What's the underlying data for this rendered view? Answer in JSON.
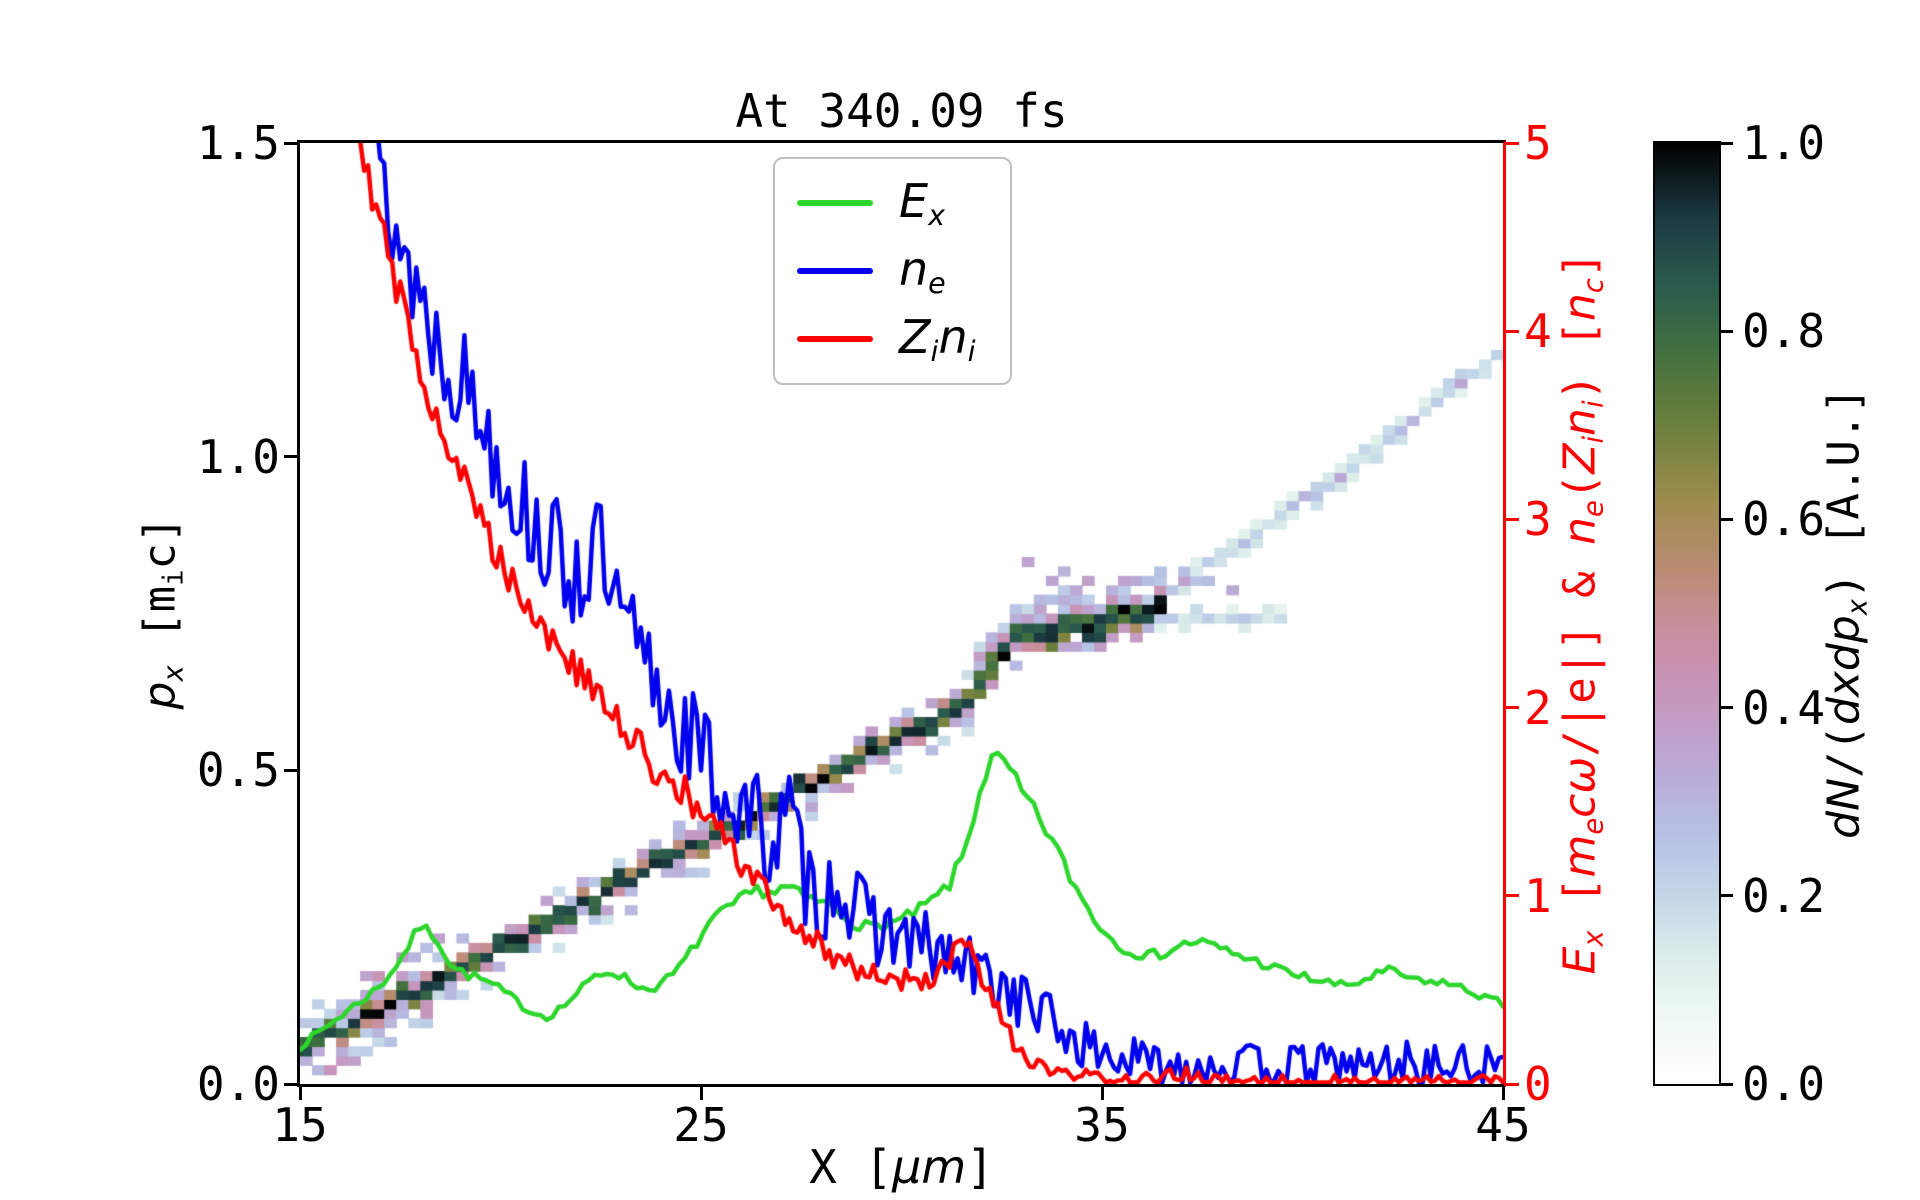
{
  "chart_data": {
    "type": "line+heatmap",
    "title": "At 340.09 fs",
    "xlabel_text": "X [μm]",
    "xlabel_parts": [
      [
        "t",
        "X ["
      ],
      [
        "i",
        "μm"
      ],
      [
        "t",
        "]"
      ]
    ],
    "ylabel_left_text": "p_x [m_ic]",
    "ylabel_left_parts": [
      [
        "i",
        "p"
      ],
      [
        "sub",
        "x"
      ],
      [
        "t",
        " [m"
      ],
      [
        "tsub",
        "i"
      ],
      [
        "t",
        "c]"
      ]
    ],
    "ylabel_right_text": "E_x [m_ecω/|e|] & n_e(Z_in_i) [n_c]",
    "ylabel_right_parts": [
      [
        "i",
        "E"
      ],
      [
        "sub",
        "x"
      ],
      [
        "t",
        " ["
      ],
      [
        "i",
        "m"
      ],
      [
        "sub",
        "e"
      ],
      [
        "i",
        "cω"
      ],
      [
        "t",
        "/|e|] & "
      ],
      [
        "i",
        "n"
      ],
      [
        "sub",
        "e"
      ],
      [
        "t",
        "("
      ],
      [
        "i",
        "Z"
      ],
      [
        "sub",
        "i"
      ],
      [
        "i",
        "n"
      ],
      [
        "sub",
        "i"
      ],
      [
        "t",
        ") ["
      ],
      [
        "i",
        "n"
      ],
      [
        "sub",
        "c"
      ],
      [
        "t",
        "]"
      ]
    ],
    "colorbar_label_text": "dN/(dxdp_x) [A.U.]",
    "colorbar_label_parts": [
      [
        "i",
        "dN"
      ],
      [
        "t",
        "/("
      ],
      [
        "i",
        "dxdp"
      ],
      [
        "sub",
        "x"
      ],
      [
        "t",
        ") [A.U.]"
      ]
    ],
    "xlim": [
      15,
      45
    ],
    "ylim_left": [
      0.0,
      1.5
    ],
    "ylim_right": [
      0,
      5
    ],
    "grid": false,
    "legend_position": "upper center-left inside plot",
    "x_ticks": {
      "values": [
        15,
        25,
        35,
        45
      ],
      "labels": [
        "15",
        "25",
        "35",
        "45"
      ]
    },
    "y_ticks_left": {
      "values": [
        0.0,
        0.5,
        1.0,
        1.5
      ],
      "labels": [
        "0.0",
        "0.5",
        "1.0",
        "1.5"
      ]
    },
    "y_ticks_right": {
      "values": [
        0,
        1,
        2,
        3,
        4,
        5
      ],
      "labels": [
        "0",
        "1",
        "2",
        "3",
        "4",
        "5"
      ]
    },
    "colors": {
      "axis": "#000000",
      "right_axis": "#ff0000",
      "legend_border": "#bfbfbf"
    },
    "colorbar": {
      "range": [
        0.0,
        1.0
      ],
      "ticks": {
        "values": [
          0.0,
          0.2,
          0.4,
          0.6,
          0.8,
          1.0
        ],
        "labels": [
          "0.0",
          "0.2",
          "0.4",
          "0.6",
          "0.8",
          "1.0"
        ]
      },
      "stops": [
        [
          0,
          "#ffffff"
        ],
        [
          0.06,
          "#f2faf5"
        ],
        [
          0.13,
          "#ddeeea"
        ],
        [
          0.2,
          "#c3d7e8"
        ],
        [
          0.27,
          "#b6bfe3"
        ],
        [
          0.34,
          "#bba8d4"
        ],
        [
          0.42,
          "#c795bb"
        ],
        [
          0.48,
          "#c98f9f"
        ],
        [
          0.55,
          "#b98c71"
        ],
        [
          0.62,
          "#9d8c4e"
        ],
        [
          0.7,
          "#6b803c"
        ],
        [
          0.78,
          "#40703f"
        ],
        [
          0.85,
          "#2a5a4c"
        ],
        [
          0.92,
          "#1b3a41"
        ],
        [
          1,
          "#000000"
        ]
      ]
    },
    "series": [
      {
        "name": "E_x",
        "legend_parts": [
          [
            "i",
            "E"
          ],
          [
            "sub",
            "x"
          ]
        ],
        "color": "#2dd62d",
        "axis": "right",
        "noise": 0.015,
        "step": 0.15,
        "seed": 7,
        "x": [
          15,
          15.5,
          16,
          16.5,
          17,
          17.5,
          18,
          18.4,
          18.8,
          19.2,
          19.6,
          20,
          20.4,
          20.8,
          21.2,
          21.6,
          22,
          22.4,
          22.8,
          23.2,
          23.6,
          24,
          24.4,
          24.8,
          25.2,
          25.6,
          26,
          26.4,
          26.8,
          27.2,
          27.6,
          28,
          28.4,
          28.8,
          29.2,
          29.6,
          30,
          30.4,
          30.8,
          31.2,
          31.6,
          32,
          32.3,
          32.6,
          33,
          33.4,
          33.8,
          34.2,
          34.6,
          35,
          35.4,
          35.8,
          36.2,
          36.6,
          37,
          37.4,
          37.8,
          38.2,
          38.6,
          39,
          39.4,
          39.8,
          40.2,
          40.6,
          41,
          41.4,
          41.8,
          42.2,
          42.6,
          43,
          43.4,
          43.8,
          44.2,
          44.6,
          45
        ],
        "y": [
          0.2,
          0.28,
          0.36,
          0.44,
          0.52,
          0.66,
          0.84,
          0.78,
          0.62,
          0.58,
          0.55,
          0.5,
          0.44,
          0.38,
          0.36,
          0.42,
          0.5,
          0.58,
          0.6,
          0.55,
          0.5,
          0.53,
          0.6,
          0.72,
          0.85,
          0.92,
          0.98,
          1.03,
          1.02,
          1.05,
          0.98,
          0.97,
          0.92,
          0.86,
          0.83,
          0.85,
          0.87,
          0.92,
          0.98,
          1.06,
          1.25,
          1.6,
          1.74,
          1.7,
          1.55,
          1.42,
          1.28,
          1.1,
          0.95,
          0.82,
          0.74,
          0.7,
          0.68,
          0.7,
          0.74,
          0.76,
          0.73,
          0.7,
          0.67,
          0.64,
          0.61,
          0.58,
          0.56,
          0.54,
          0.52,
          0.54,
          0.58,
          0.6,
          0.57,
          0.53,
          0.55,
          0.52,
          0.49,
          0.46,
          0.42
        ]
      },
      {
        "name": "n_e",
        "legend_parts": [
          [
            "i",
            "n"
          ],
          [
            "sub",
            "e"
          ]
        ],
        "color": "#0000ee",
        "axis": "right",
        "noise": 0.1,
        "step": 0.1,
        "seed": 13,
        "x": [
          16,
          16.4,
          16.8,
          17.2,
          17.6,
          18,
          18.4,
          18.8,
          19.2,
          19.6,
          20,
          20.4,
          20.8,
          21.2,
          21.6,
          22,
          22.4,
          22.8,
          23.2,
          23.6,
          24,
          24.4,
          24.8,
          25.2,
          25.6,
          26,
          26.4,
          26.8,
          27.2,
          27.6,
          28,
          28.4,
          28.8,
          29.2,
          29.6,
          30,
          30.4,
          30.8,
          31.2,
          31.6,
          32,
          32.4,
          32.8,
          33.2,
          33.6,
          34,
          34.4,
          34.8,
          35.2,
          35.6,
          36,
          36.5,
          37,
          37.5,
          38,
          38.5,
          39,
          39.5,
          40,
          40.5,
          41,
          41.5,
          42,
          42.5,
          43,
          43.5,
          44,
          44.5,
          45
        ],
        "y": [
          6.8,
          5.6,
          5.0,
          4.65,
          4.4,
          4.2,
          3.95,
          3.82,
          3.7,
          3.5,
          3.32,
          3.12,
          2.98,
          2.86,
          2.76,
          2.7,
          2.88,
          2.52,
          2.38,
          2.22,
          2.08,
          1.95,
          1.82,
          1.68,
          1.55,
          1.46,
          1.38,
          1.28,
          1.42,
          1.08,
          0.96,
          1.1,
          0.92,
          0.86,
          0.82,
          0.78,
          0.74,
          0.7,
          0.66,
          0.62,
          0.58,
          0.54,
          0.48,
          0.42,
          0.36,
          0.28,
          0.22,
          0.18,
          0.15,
          0.13,
          0.12,
          0.1,
          0.1,
          0.11,
          0.1,
          0.09,
          0.11,
          0.1,
          0.09,
          0.1,
          0.11,
          0.09,
          0.1,
          0.12,
          0.09,
          0.1,
          0.09,
          0.1,
          0.08
        ]
      },
      {
        "name": "Z_in_i",
        "legend_parts": [
          [
            "i",
            "Z"
          ],
          [
            "sub",
            "i"
          ],
          [
            "i",
            "n"
          ],
          [
            "sub",
            "i"
          ]
        ],
        "color": "#ff0000",
        "axis": "right",
        "noise": 0.035,
        "step": 0.1,
        "seed": 29,
        "x": [
          15.7,
          16,
          16.3,
          16.6,
          17,
          17.4,
          17.8,
          18.2,
          18.6,
          19,
          19.4,
          19.8,
          20.2,
          20.6,
          21,
          21.4,
          21.8,
          22.2,
          22.6,
          23,
          23.4,
          23.8,
          24.2,
          24.6,
          25,
          25.4,
          25.8,
          26.2,
          26.6,
          27,
          27.4,
          27.8,
          28.2,
          28.6,
          29,
          29.4,
          29.8,
          30.2,
          30.6,
          31,
          31.3,
          31.5,
          31.7,
          32,
          32.4,
          32.8,
          33.2,
          33.6,
          34,
          34.5,
          35,
          35.5,
          36,
          36.5,
          37,
          37.3,
          37.6,
          38,
          39,
          40,
          41,
          42,
          43,
          44,
          45
        ],
        "y": [
          6.8,
          5.9,
          5.3,
          4.95,
          4.55,
          4.25,
          3.95,
          3.68,
          3.45,
          3.25,
          3.05,
          2.87,
          2.72,
          2.58,
          2.45,
          2.33,
          2.22,
          2.12,
          2.0,
          1.9,
          1.8,
          1.7,
          1.62,
          1.53,
          1.44,
          1.34,
          1.23,
          1.12,
          1.02,
          0.92,
          0.83,
          0.76,
          0.7,
          0.65,
          0.61,
          0.58,
          0.555,
          0.545,
          0.55,
          0.6,
          0.68,
          0.76,
          0.7,
          0.55,
          0.38,
          0.22,
          0.12,
          0.07,
          0.05,
          0.04,
          0.03,
          0.025,
          0.02,
          0.03,
          0.06,
          0.04,
          0.02,
          0.015,
          0.01,
          0.01,
          0.012,
          0.01,
          0.01,
          0.01,
          0.01
        ]
      }
    ],
    "heatmap": {
      "description": "dN/(dxdp_x) phase-space density: dark diagonal band plus fainter high-px band",
      "cell": [
        0.3,
        0.015
      ],
      "seed": 42,
      "bands": [
        {
          "points": [
            [
              15,
              0.055
            ],
            [
              31.5,
              0.6
            ],
            [
              32.8,
              0.705
            ],
            [
              36.3,
              0.75
            ]
          ],
          "core_density": [
            0.78,
            1.0
          ],
          "type": "dark"
        },
        {
          "points": [
            [
              36.3,
              0.77
            ],
            [
              40.5,
              0.95
            ],
            [
              45.3,
              1.19
            ]
          ],
          "core_density": [
            0.15,
            0.3
          ],
          "type": "light"
        }
      ],
      "tail": {
        "x0": 36.3,
        "x1": 39.6,
        "y": 0.745,
        "density": [
          0.12,
          0.25
        ]
      },
      "cloud": {
        "x0": 32.5,
        "x1": 38.3,
        "y0": 0.775,
        "y1": 0.825,
        "density": [
          0.22,
          0.4
        ]
      }
    }
  }
}
